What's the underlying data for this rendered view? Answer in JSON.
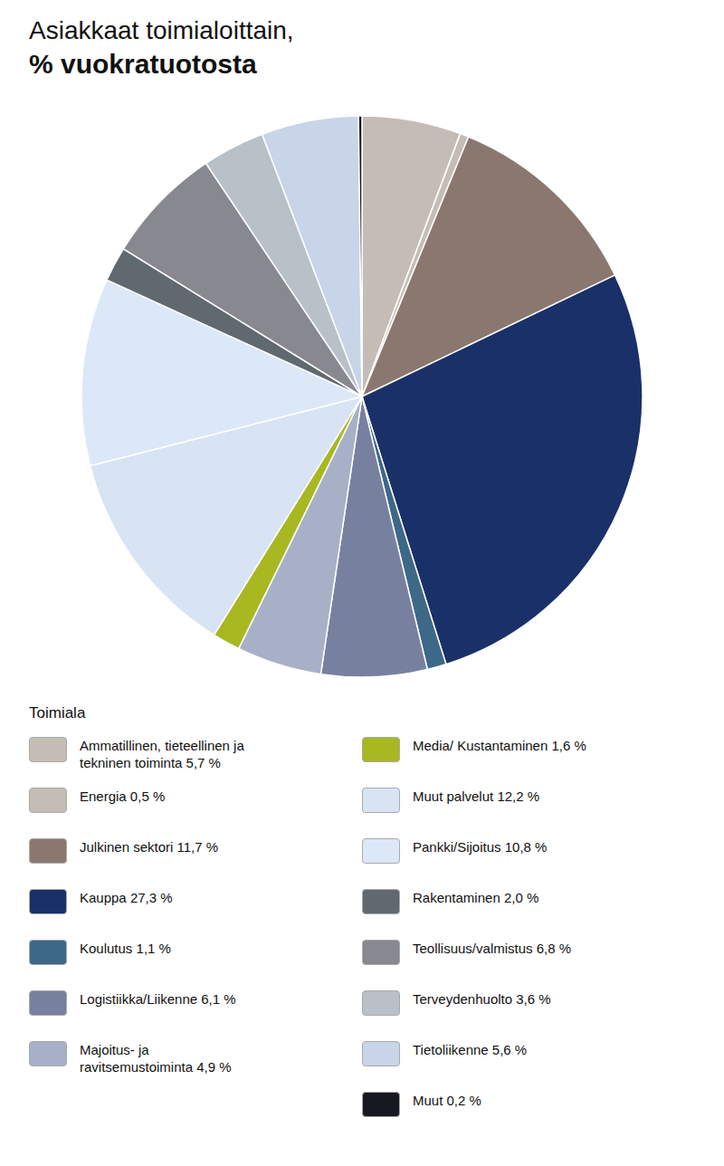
{
  "chart_data": {
    "type": "pie",
    "title": "Asiakkaat toimialoittain,",
    "subtitle": "% vuokratuotosta",
    "legend_title": "Toimiala",
    "categories": [
      "Ammatillinen, tieteellinen ja\ntekninen toiminta 5,7 %",
      "Energia 0,5 %",
      "Julkinen sektori 11,7 %",
      "Kauppa 27,3 %",
      "Koulutus 1,1 %",
      "Logistiikka/Liikenne 6,1 %",
      "Majoitus- ja\nravitsemustoiminta 4,9 %",
      "Media/ Kustantaminen 1,6 %",
      "Muut palvelut 12,2 %",
      "Pankki/Sijoitus 10,8 %",
      "Rakentaminen 2,0 %",
      "Teollisuus/valmistus 6,8 %",
      "Terveydenhuolto 3,6 %",
      "Tietoliikenne 5,6 %",
      "Muut 0,2 %"
    ],
    "values": [
      5.7,
      0.5,
      11.7,
      27.3,
      1.1,
      6.1,
      4.9,
      1.6,
      12.2,
      10.8,
      2.0,
      6.8,
      3.6,
      5.6,
      0.2
    ],
    "colors": [
      "#c5bdb5",
      "#c5bdb5",
      "#8a7870",
      "#1a3068",
      "#3d6888",
      "#7880a0",
      "#a8b0c8",
      "#a8b820",
      "#d8e4f4",
      "#dce8f8",
      "#606870",
      "#888890",
      "#b8c0c8",
      "#c8d4e8",
      "#181820"
    ],
    "legend": "bottom",
    "data_labels": false
  }
}
